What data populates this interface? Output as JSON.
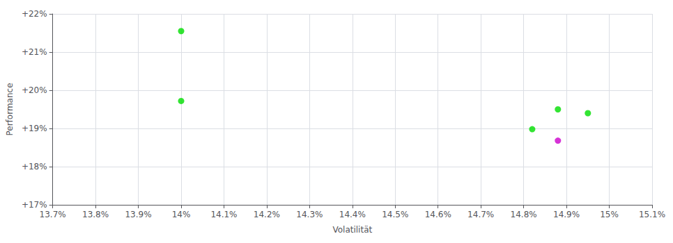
{
  "chart_data": {
    "type": "scatter",
    "xlabel": "Volatilität",
    "ylabel": "Performance",
    "x": [
      14.0,
      14.0,
      14.82,
      14.88,
      14.95,
      14.88
    ],
    "values": [
      21.55,
      19.72,
      18.98,
      19.5,
      19.4,
      18.68
    ],
    "colors": [
      "#00dd00",
      "#00dd00",
      "#00dd00",
      "#00dd00",
      "#00dd00",
      "#cc00cc"
    ],
    "xlim": [
      13.7,
      15.1
    ],
    "ylim": [
      17.0,
      22.0
    ],
    "xticks": [
      {
        "value": 13.7,
        "label": "13.7%"
      },
      {
        "value": 13.8,
        "label": "13.8%"
      },
      {
        "value": 13.9,
        "label": "13.9%"
      },
      {
        "value": 14.0,
        "label": "14%"
      },
      {
        "value": 14.1,
        "label": "14.1%"
      },
      {
        "value": 14.2,
        "label": "14.2%"
      },
      {
        "value": 14.3,
        "label": "14.3%"
      },
      {
        "value": 14.4,
        "label": "14.4%"
      },
      {
        "value": 14.5,
        "label": "14.5%"
      },
      {
        "value": 14.6,
        "label": "14.6%"
      },
      {
        "value": 14.7,
        "label": "14.7%"
      },
      {
        "value": 14.8,
        "label": "14.8%"
      },
      {
        "value": 14.9,
        "label": "14.9%"
      },
      {
        "value": 15.0,
        "label": "15%"
      },
      {
        "value": 15.1,
        "label": "15.1%"
      }
    ],
    "yticks": [
      {
        "value": 17.0,
        "label": "+17%"
      },
      {
        "value": 18.0,
        "label": "+18%"
      },
      {
        "value": 19.0,
        "label": "+19%"
      },
      {
        "value": 20.0,
        "label": "+20%"
      },
      {
        "value": 21.0,
        "label": "+21%"
      },
      {
        "value": 22.0,
        "label": "+22%"
      }
    ],
    "grid": true
  }
}
